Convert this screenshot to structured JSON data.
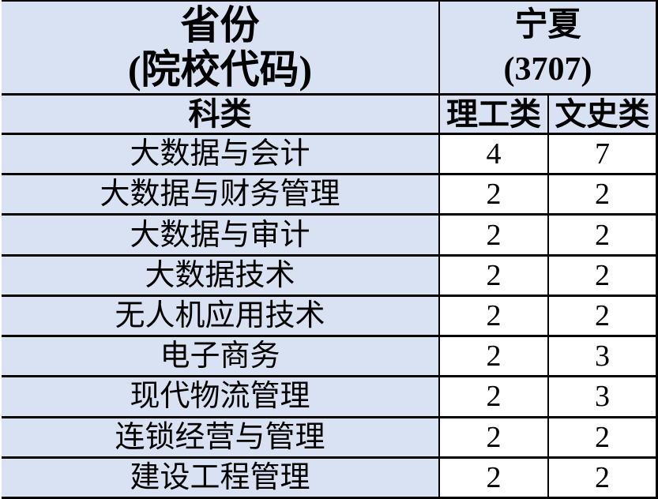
{
  "table": {
    "header_row1": {
      "province_label_line1": "省份",
      "province_label_line2": "(院校代码)",
      "province_value_line1": "宁夏",
      "province_value_line2": "(3707)"
    },
    "header_row2": {
      "subject_label": "科类",
      "science_label": "理工类",
      "arts_label": "文史类"
    },
    "rows": [
      {
        "major": "大数据与会计",
        "science": "4",
        "arts": "7"
      },
      {
        "major": "大数据与财务管理",
        "science": "2",
        "arts": "2"
      },
      {
        "major": "大数据与审计",
        "science": "2",
        "arts": "2"
      },
      {
        "major": "大数据技术",
        "science": "2",
        "arts": "2"
      },
      {
        "major": "无人机应用技术",
        "science": "2",
        "arts": "2"
      },
      {
        "major": "电子商务",
        "science": "2",
        "arts": "3"
      },
      {
        "major": "现代物流管理",
        "science": "2",
        "arts": "3"
      },
      {
        "major": "连锁经营与管理",
        "science": "2",
        "arts": "2"
      },
      {
        "major": "建设工程管理",
        "science": "2",
        "arts": "2"
      }
    ],
    "colors": {
      "cell_fill_blue": "#d9e2f3",
      "cell_fill_white": "#ffffff",
      "border": "#000000",
      "text": "#000000"
    }
  }
}
